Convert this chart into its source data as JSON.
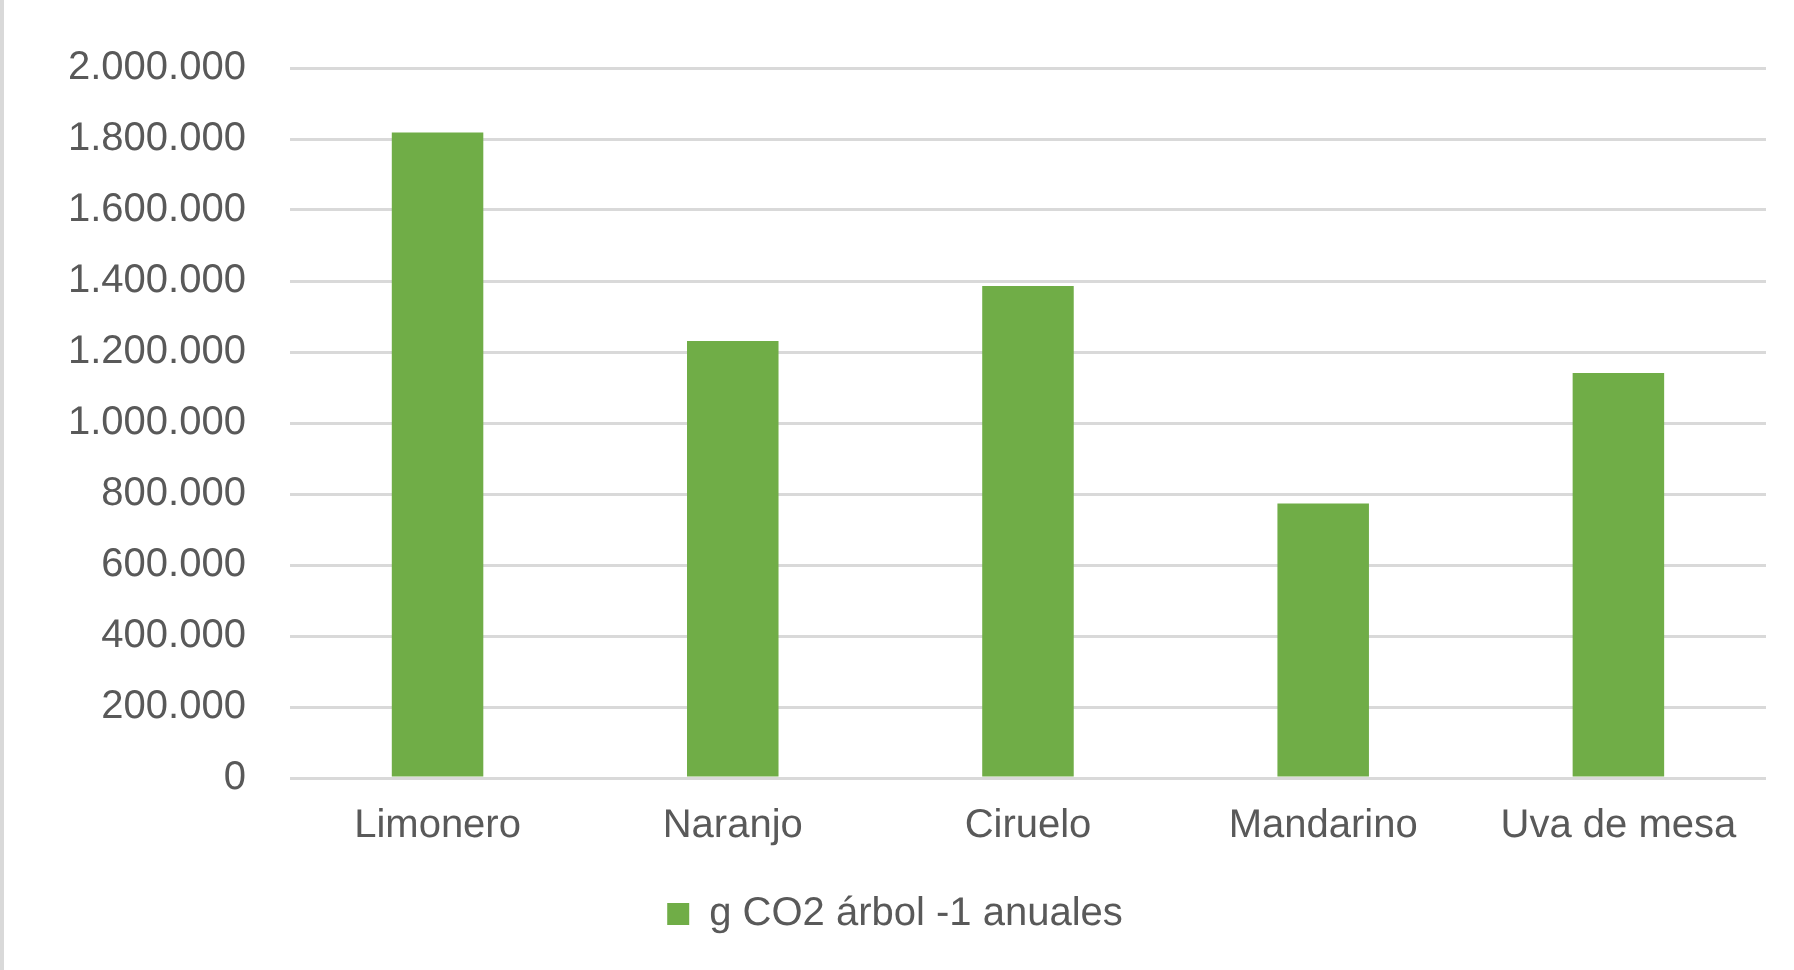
{
  "chart_data": {
    "type": "bar",
    "categories": [
      "Limonero",
      "Naranjo",
      "Ciruelo",
      "Mandarino",
      "Uva de mesa"
    ],
    "series": [
      {
        "name": "g CO2 árbol -1 anuales",
        "color": "#70ad47",
        "values": [
          1818000,
          1231000,
          1386000,
          773000,
          1141000
        ]
      }
    ],
    "ylim": [
      0,
      2000000
    ],
    "yticks": [
      {
        "value": 0,
        "label": "0"
      },
      {
        "value": 200000,
        "label": "200.000"
      },
      {
        "value": 400000,
        "label": "400.000"
      },
      {
        "value": 600000,
        "label": "600.000"
      },
      {
        "value": 800000,
        "label": "800.000"
      },
      {
        "value": 1000000,
        "label": "1.000.000"
      },
      {
        "value": 1200000,
        "label": "1.200.000"
      },
      {
        "value": 1400000,
        "label": "1.400.000"
      },
      {
        "value": 1600000,
        "label": "1.600.000"
      },
      {
        "value": 1800000,
        "label": "1.800.000"
      },
      {
        "value": 2000000,
        "label": "2.000.000"
      }
    ],
    "grid": "y",
    "legend": "bottom"
  }
}
